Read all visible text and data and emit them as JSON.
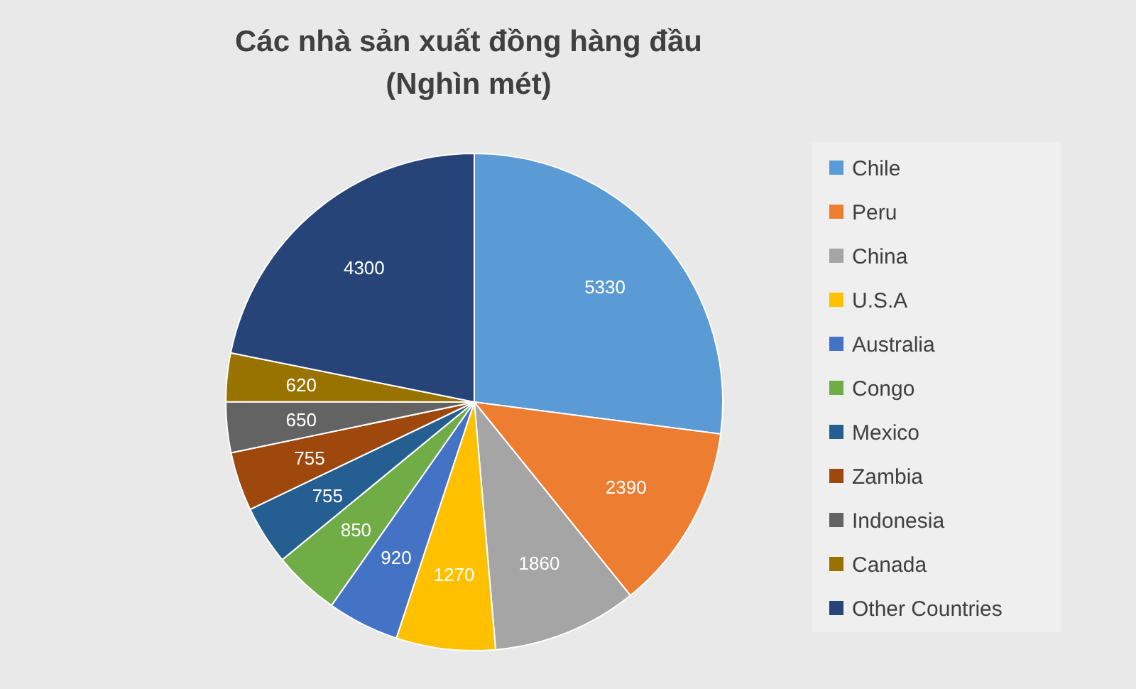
{
  "chart_data": {
    "type": "pie",
    "title": "Các nhà sản xuất đồng hàng đầu\n(Nghìn mét)",
    "categories": [
      "Chile",
      "Peru",
      "China",
      "U.S.A",
      "Australia",
      "Congo",
      "Mexico",
      "Zambia",
      "Indonesia",
      "Canada",
      "Other Countries"
    ],
    "values": [
      5330,
      2390,
      1860,
      1270,
      920,
      850,
      755,
      755,
      650,
      620,
      4300
    ],
    "colors": [
      "#5b9bd5",
      "#ed7d31",
      "#a5a5a5",
      "#ffc000",
      "#4472c4",
      "#70ad47",
      "#255e91",
      "#9e480e",
      "#636363",
      "#997300",
      "#264478"
    ],
    "data_labels": true,
    "legend": "right"
  }
}
